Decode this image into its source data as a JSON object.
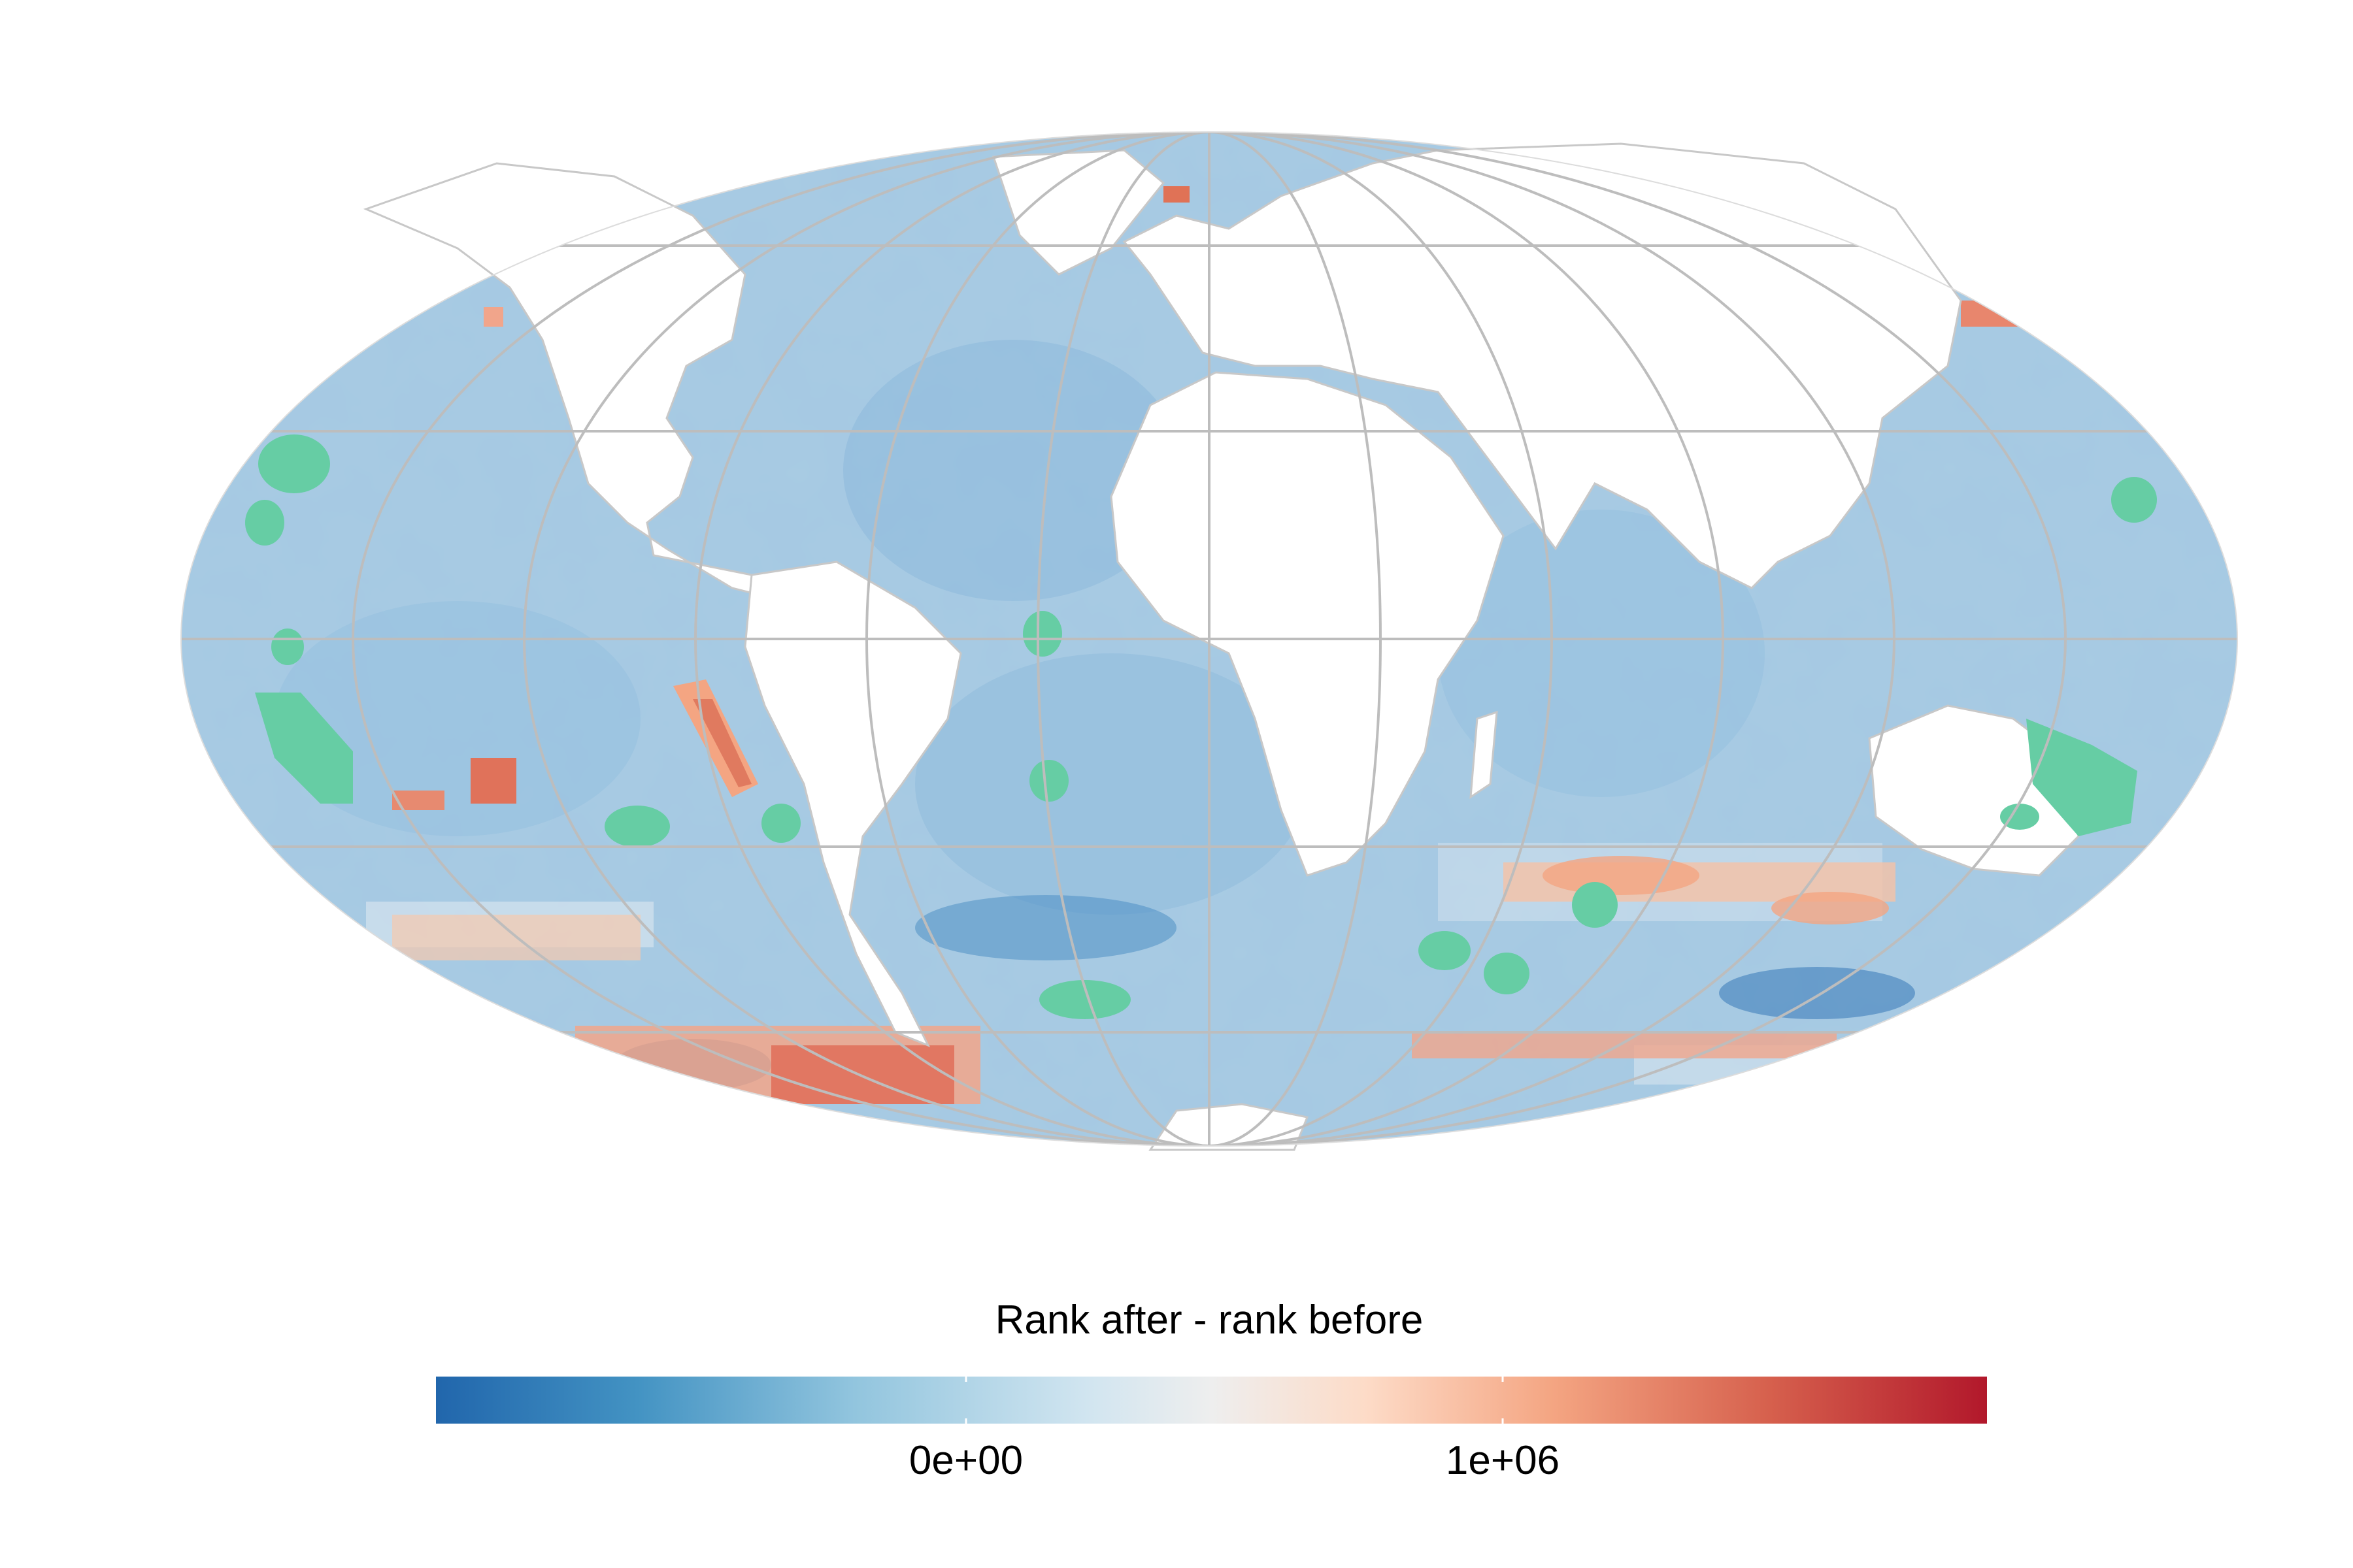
{
  "map": {
    "projection": "Mollweide",
    "graticule_color": "#bdbdbd",
    "land_color": "#ffffff",
    "border_color": "#c8c8c8",
    "ocean_base_color": "#a8cbe3",
    "protected_area_color": "#66cda4"
  },
  "legend": {
    "title": "Rank after - rank before",
    "ticks": [
      "0e+00",
      "1e+06"
    ],
    "color_stops": [
      "#2166ac",
      "#4393c3",
      "#92c5de",
      "#d1e5f0",
      "#f7f7f7",
      "#fddbc7",
      "#f4a582",
      "#d6604d",
      "#b2182b"
    ]
  }
}
